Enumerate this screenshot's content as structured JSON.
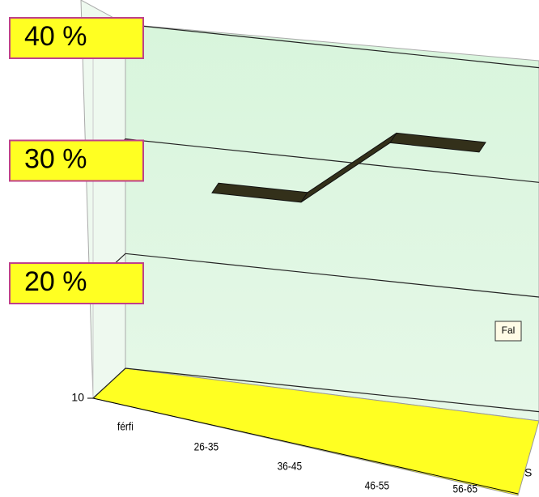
{
  "chart_data": {
    "type": "line",
    "categories": [
      "férfi",
      "26-35",
      "36-45",
      "46-55",
      "56-65"
    ],
    "series": [
      {
        "name": "Fal",
        "color": "#33301a",
        "values": [
          null,
          27,
          27,
          33,
          33
        ]
      }
    ],
    "ylim": [
      10,
      40
    ],
    "yticks": [
      10,
      {
        "value": 20,
        "label": "20 %"
      },
      {
        "value": 30,
        "label": "30 %"
      },
      {
        "value": 40,
        "label": "40 %"
      }
    ],
    "grid": true,
    "legend_text": "S"
  }
}
